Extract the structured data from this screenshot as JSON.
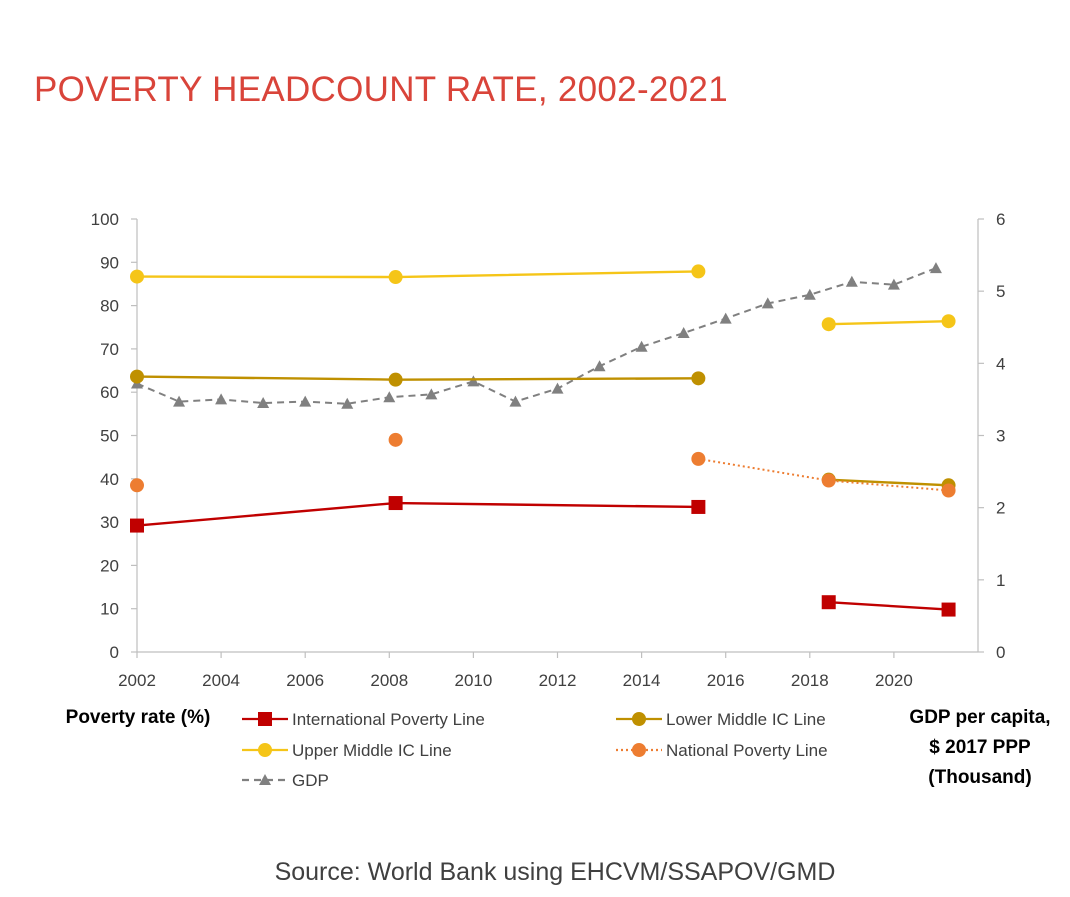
{
  "title": "POVERTY HEADCOUNT RATE, 2002-2021",
  "left_axis_title": "Poverty rate (%)",
  "right_axis_title_lines": [
    "GDP per capita,",
    "$ 2017 PPP",
    "(Thousand)"
  ],
  "source": "Source: World Bank using EHCVM/SSAPOV/GMD",
  "chart_data": {
    "type": "line",
    "title": "POVERTY HEADCOUNT RATE, 2002-2021",
    "xlabel": "",
    "ylabel": "Poverty rate (%)",
    "ylabel_right": "GDP per capita, $ 2017 PPP (Thousand)",
    "xlim": [
      2002,
      2022
    ],
    "xticks": [
      2002,
      2004,
      2006,
      2008,
      2010,
      2012,
      2014,
      2016,
      2018,
      2020
    ],
    "ylim": [
      0,
      100
    ],
    "yticks": [
      0,
      10,
      20,
      30,
      40,
      50,
      60,
      70,
      80,
      90,
      100
    ],
    "ylim_right": [
      0,
      6
    ],
    "yticks_right": [
      0,
      1,
      2,
      3,
      4,
      5,
      6
    ],
    "grid": false,
    "legend_position": "bottom",
    "series": [
      {
        "name": "International Poverty Line",
        "axis": "left",
        "color": "#c00000",
        "marker": "square",
        "line": "solid",
        "points": [
          [
            2002,
            29.2
          ],
          [
            2008,
            34.4
          ],
          [
            2015,
            33.5
          ],
          [
            2018,
            11.5
          ],
          [
            2021,
            9.8
          ]
        ],
        "segments": [
          [
            0,
            1,
            2
          ],
          [
            3,
            4
          ]
        ]
      },
      {
        "name": "Lower Middle IC Line",
        "axis": "left",
        "color": "#bf9000",
        "marker": "circle",
        "line": "solid",
        "points": [
          [
            2002,
            63.6
          ],
          [
            2008,
            62.9
          ],
          [
            2015,
            63.2
          ],
          [
            2018,
            39.8
          ],
          [
            2021,
            38.5
          ]
        ],
        "segments": [
          [
            0,
            1,
            2
          ],
          [
            3,
            4
          ]
        ]
      },
      {
        "name": "Upper Middle IC Line",
        "axis": "left",
        "color": "#f5c518",
        "marker": "circle",
        "line": "solid",
        "points": [
          [
            2002,
            86.7
          ],
          [
            2008,
            86.6
          ],
          [
            2015,
            87.9
          ],
          [
            2018,
            75.7
          ],
          [
            2021,
            76.4
          ]
        ],
        "segments": [
          [
            0,
            1,
            2
          ],
          [
            3,
            4
          ]
        ]
      },
      {
        "name": "National Poverty Line",
        "axis": "left",
        "color": "#ed7d31",
        "marker": "circle",
        "line": "dotted",
        "points": [
          [
            2002,
            38.5
          ],
          [
            2008,
            49.0
          ],
          [
            2015,
            44.6
          ],
          [
            2018,
            39.6
          ],
          [
            2021,
            37.3
          ]
        ],
        "segments": [
          [
            2,
            3,
            4
          ]
        ]
      },
      {
        "name": "GDP",
        "axis": "right",
        "color": "#808080",
        "marker": "triangle",
        "line": "dashed",
        "points": [
          [
            2002,
            3.72
          ],
          [
            2003,
            3.47
          ],
          [
            2004,
            3.5
          ],
          [
            2005,
            3.45
          ],
          [
            2006,
            3.47
          ],
          [
            2007,
            3.44
          ],
          [
            2008,
            3.53
          ],
          [
            2009,
            3.57
          ],
          [
            2010,
            3.75
          ],
          [
            2011,
            3.47
          ],
          [
            2012,
            3.65
          ],
          [
            2013,
            3.96
          ],
          [
            2014,
            4.23
          ],
          [
            2015,
            4.42
          ],
          [
            2016,
            4.62
          ],
          [
            2017,
            4.83
          ],
          [
            2018,
            4.95
          ],
          [
            2019,
            5.13
          ],
          [
            2020,
            5.09
          ],
          [
            2021,
            5.32
          ]
        ],
        "segments": [
          [
            0,
            1,
            2,
            3,
            4,
            5,
            6,
            7,
            8,
            9,
            10,
            11,
            12,
            13,
            14,
            15,
            16,
            17,
            18,
            19
          ]
        ]
      }
    ]
  }
}
